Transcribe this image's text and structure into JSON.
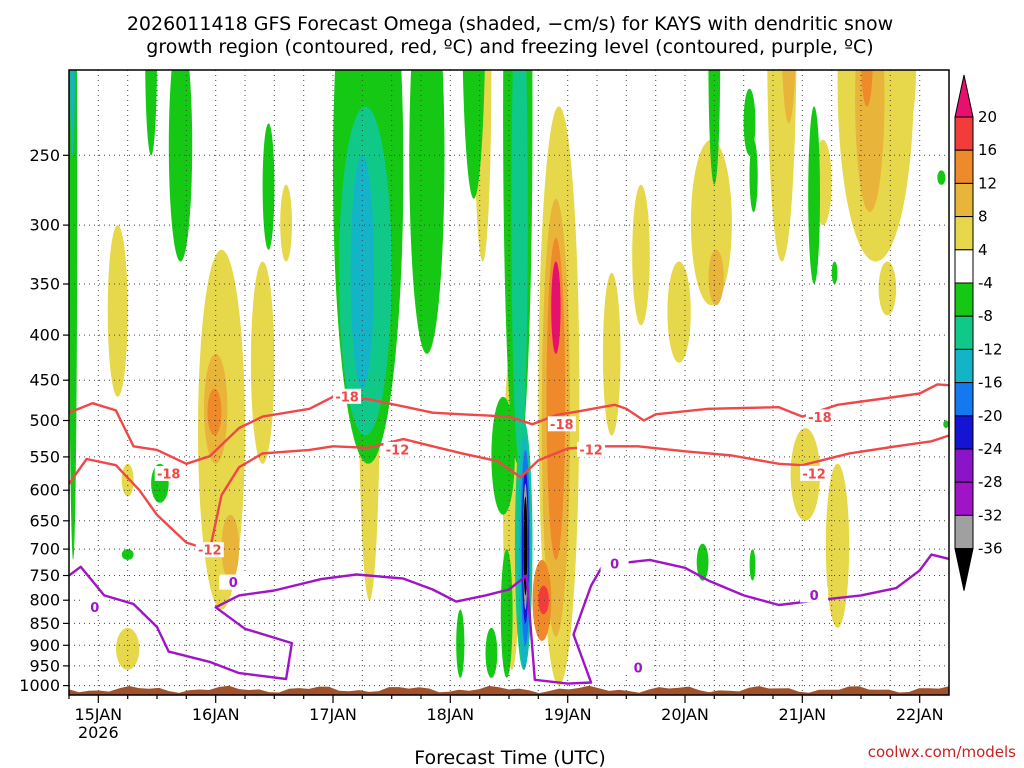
{
  "chart_data": {
    "type": "heatmap",
    "title_lines": [
      "2026011418 GFS Forecast Omega (shaded, −cm/s) for KAYS with dendritic snow",
      "growth region (contoured, red, ºC) and freezing level (contoured, purple, ºC)"
    ],
    "xlabel": "Forecast Time (UTC)",
    "ylabel": "",
    "x_ticks": [
      "15JAN",
      "16JAN",
      "17JAN",
      "18JAN",
      "19JAN",
      "20JAN",
      "21JAN",
      "22JAN"
    ],
    "x_tick_sublabel": "2026",
    "x_range_days": [
      14.75,
      22.25
    ],
    "y_ticks": [
      250,
      300,
      350,
      400,
      450,
      500,
      550,
      600,
      650,
      700,
      750,
      800,
      850,
      900,
      950,
      1000
    ],
    "y_range_hpa": [
      200,
      1025
    ],
    "colorbar": {
      "labels": [
        "20",
        "16",
        "12",
        "8",
        "4",
        "-4",
        "-8",
        "-12",
        "-16",
        "-20",
        "-24",
        "-28",
        "-32",
        "-36"
      ],
      "bins": [
        {
          "color": "#e8106e"
        },
        {
          "color": "#f23c3c"
        },
        {
          "color": "#ee8a2a"
        },
        {
          "color": "#e8b43a"
        },
        {
          "color": "#e6d84a"
        },
        {
          "color": "#ffffff"
        },
        {
          "color": "#14c814"
        },
        {
          "color": "#10c888"
        },
        {
          "color": "#14b4c8"
        },
        {
          "color": "#1478f0"
        },
        {
          "color": "#1414d2"
        },
        {
          "color": "#8c14c8"
        },
        {
          "color": "#a014c8"
        },
        {
          "color": "#a0a0a0"
        },
        {
          "color": "#000000"
        }
      ]
    },
    "contours": [
      {
        "name": "dgz-minus18",
        "label": "-18",
        "color": "#f04848",
        "points": [
          [
            14.75,
            490
          ],
          [
            14.95,
            478
          ],
          [
            15.15,
            487
          ],
          [
            15.3,
            535
          ],
          [
            15.5,
            540
          ],
          [
            15.75,
            560
          ],
          [
            15.95,
            549
          ],
          [
            16.2,
            510
          ],
          [
            16.4,
            495
          ],
          [
            16.8,
            485
          ],
          [
            17.0,
            470
          ],
          [
            17.3,
            473
          ],
          [
            17.6,
            482
          ],
          [
            17.85,
            490
          ],
          [
            18.1,
            492
          ],
          [
            18.5,
            495
          ],
          [
            18.7,
            505
          ],
          [
            18.9,
            493
          ],
          [
            19.1,
            488
          ],
          [
            19.4,
            480
          ],
          [
            19.5,
            485
          ],
          [
            19.65,
            500
          ],
          [
            19.75,
            492
          ],
          [
            20.2,
            485
          ],
          [
            20.5,
            484
          ],
          [
            20.8,
            483
          ],
          [
            21.0,
            495
          ],
          [
            21.3,
            480
          ],
          [
            21.6,
            474
          ],
          [
            22.0,
            466
          ],
          [
            22.15,
            455
          ],
          [
            22.25,
            456
          ]
        ],
        "label_positions": [
          [
            17.12,
            470
          ],
          [
            15.6,
            575
          ],
          [
            18.95,
            505
          ],
          [
            21.15,
            496
          ]
        ]
      },
      {
        "name": "dgz-minus12",
        "label": "-12",
        "color": "#f04848",
        "points": [
          [
            14.75,
            590
          ],
          [
            14.9,
            553
          ],
          [
            15.15,
            562
          ],
          [
            15.35,
            600
          ],
          [
            15.5,
            640
          ],
          [
            15.75,
            688
          ],
          [
            15.95,
            702
          ],
          [
            16.05,
            608
          ],
          [
            16.2,
            565
          ],
          [
            16.4,
            545
          ],
          [
            16.8,
            540
          ],
          [
            17.0,
            535
          ],
          [
            17.3,
            537
          ],
          [
            17.6,
            525
          ],
          [
            17.85,
            535
          ],
          [
            18.1,
            545
          ],
          [
            18.4,
            556
          ],
          [
            18.6,
            580
          ],
          [
            18.75,
            555
          ],
          [
            19.0,
            538
          ],
          [
            19.3,
            535
          ],
          [
            19.6,
            535
          ],
          [
            20.0,
            542
          ],
          [
            20.4,
            548
          ],
          [
            20.8,
            560
          ],
          [
            21.0,
            562
          ],
          [
            21.4,
            545
          ],
          [
            21.8,
            535
          ],
          [
            22.1,
            528
          ],
          [
            22.25,
            520
          ]
        ],
        "label_positions": [
          [
            15.95,
            702
          ],
          [
            17.55,
            540
          ],
          [
            19.2,
            540
          ],
          [
            21.1,
            575
          ]
        ]
      },
      {
        "name": "freezing-level-0c",
        "label": "0",
        "color": "#a014c8",
        "points": [
          [
            14.75,
            750
          ],
          [
            14.85,
            733
          ],
          [
            15.05,
            790
          ],
          [
            15.3,
            808
          ],
          [
            15.5,
            858
          ],
          [
            15.6,
            915
          ],
          [
            15.95,
            940
          ],
          [
            16.2,
            968
          ],
          [
            16.6,
            983
          ],
          [
            16.65,
            895
          ],
          [
            16.25,
            862
          ],
          [
            16.0,
            815
          ],
          [
            16.2,
            790
          ],
          [
            16.5,
            780
          ],
          [
            16.9,
            757
          ],
          [
            17.2,
            748
          ],
          [
            17.6,
            756
          ],
          [
            17.85,
            778
          ],
          [
            18.05,
            803
          ],
          [
            18.3,
            790
          ],
          [
            18.5,
            778
          ],
          [
            18.65,
            750
          ],
          [
            18.72,
            985
          ],
          [
            19.0,
            995
          ],
          [
            19.2,
            992
          ],
          [
            19.05,
            875
          ],
          [
            19.2,
            770
          ],
          [
            19.3,
            730
          ],
          [
            19.5,
            725
          ],
          [
            19.7,
            720
          ],
          [
            20.0,
            735
          ],
          [
            20.2,
            760
          ],
          [
            20.5,
            790
          ],
          [
            20.8,
            810
          ],
          [
            21.2,
            798
          ],
          [
            21.5,
            790
          ],
          [
            21.8,
            775
          ],
          [
            22.0,
            740
          ],
          [
            22.1,
            710
          ],
          [
            22.25,
            718
          ]
        ],
        "label_positions": [
          [
            14.97,
            815
          ],
          [
            16.15,
            764
          ],
          [
            19.4,
            728
          ],
          [
            21.1,
            790
          ],
          [
            19.6,
            955
          ]
        ]
      }
    ],
    "shaded_regions": [
      {
        "name": "updraft-band-17jan",
        "value_range": [
          -16,
          -8
        ],
        "time_range": [
          17.0,
          17.6
        ],
        "pressure_range": [
          220,
          560
        ]
      },
      {
        "name": "strong-updraft-18-19jan",
        "value_range": [
          -36,
          -16
        ],
        "time_range": [
          18.55,
          18.7
        ],
        "pressure_range": [
          500,
          960
        ]
      },
      {
        "name": "subsidence-19jan",
        "value_range": [
          8,
          20
        ],
        "time_range": [
          18.75,
          19.1
        ],
        "pressure_range": [
          270,
          980
        ]
      },
      {
        "name": "subsidence-21-22jan",
        "value_range": [
          4,
          16
        ],
        "time_range": [
          21.3,
          21.9
        ],
        "pressure_range": [
          190,
          400
        ]
      }
    ]
  },
  "footer": {
    "credit": "coolwx.com/models"
  }
}
